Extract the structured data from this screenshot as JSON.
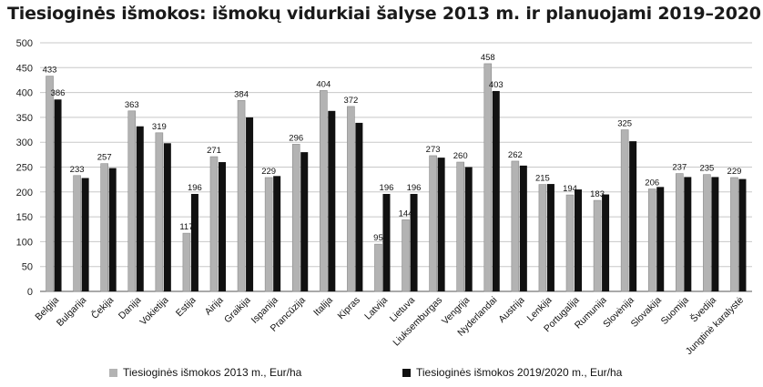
{
  "chart_data": {
    "type": "bar",
    "title": "Tiesioginės išmokos: išmokų vidurkiai šalyse 2013 m. ir planuojami 2019–2020 m.",
    "categories": [
      "Belgija",
      "Bulgarija",
      "Čekija",
      "Danija",
      "Vokietija",
      "Estija",
      "Airija",
      "Graikija",
      "Ispanija",
      "Prancūzija",
      "Italija",
      "Kipras",
      "Latvija",
      "Lietuva",
      "Liuksemburgas",
      "Vengrija",
      "Nyderlandai",
      "Austrija",
      "Lenkija",
      "Portugalija",
      "Rumunija",
      "Slovėnija",
      "Slovakija",
      "Suomija",
      "Švedija",
      "Jungtinė karalystė"
    ],
    "series": [
      {
        "name": "Tiesioginės išmokos 2013 m., Eur/ha",
        "color": "#b3b3b3",
        "values": [
          433,
          233,
          257,
          363,
          319,
          117,
          271,
          384,
          229,
          296,
          404,
          372,
          95,
          144,
          273,
          260,
          458,
          262,
          215,
          194,
          183,
          325,
          206,
          237,
          235,
          229
        ],
        "labels_shown": true
      },
      {
        "name": "Tiesioginės išmokos 2019/2020 m., Eur/ha",
        "color": "#111111",
        "values": [
          386,
          228,
          248,
          332,
          298,
          196,
          260,
          350,
          232,
          280,
          363,
          339,
          196,
          196,
          269,
          250,
          403,
          253,
          216,
          205,
          195,
          302,
          210,
          230,
          230,
          226
        ],
        "labels_shown": [
          true,
          false,
          false,
          false,
          false,
          true,
          false,
          false,
          false,
          false,
          false,
          false,
          true,
          true,
          false,
          false,
          true,
          false,
          false,
          false,
          false,
          false,
          false,
          false,
          false,
          false
        ]
      }
    ],
    "ylim": [
      0,
      500
    ],
    "yticks": [
      0,
      50,
      100,
      150,
      200,
      250,
      300,
      350,
      400,
      450,
      500
    ],
    "grid": true,
    "legend_position": "bottom"
  }
}
